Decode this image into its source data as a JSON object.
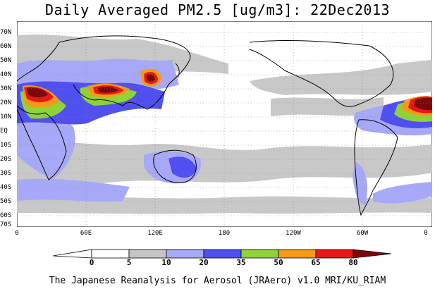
{
  "title": "Daily Averaged PM2.5 [ug/m3]: 22Dec2013",
  "map": {
    "lat_labels": [
      "70N",
      "60N",
      "50N",
      "40N",
      "30N",
      "20N",
      "10N",
      "EQ",
      "10S",
      "20S",
      "30S",
      "40S",
      "50S",
      "60S",
      "70S"
    ],
    "lon_labels": [
      "0",
      "60E",
      "120E",
      "180",
      "120W",
      "60W",
      "0"
    ],
    "ocean_color": "#ffffff",
    "coast_color": "#000000"
  },
  "colorbar": {
    "levels": [
      "0",
      "5",
      "10",
      "20",
      "35",
      "50",
      "65",
      "80"
    ],
    "colors": [
      "#ffffff",
      "#c4c4c4",
      "#a8a8f8",
      "#4f4ff0",
      "#8fd23a",
      "#f59a15",
      "#e81818",
      "#7a0a0a"
    ]
  },
  "footer": "The Japanese Reanalysis for Aerosol (JRAero) v1.0 MRI/KU_RIAM"
}
